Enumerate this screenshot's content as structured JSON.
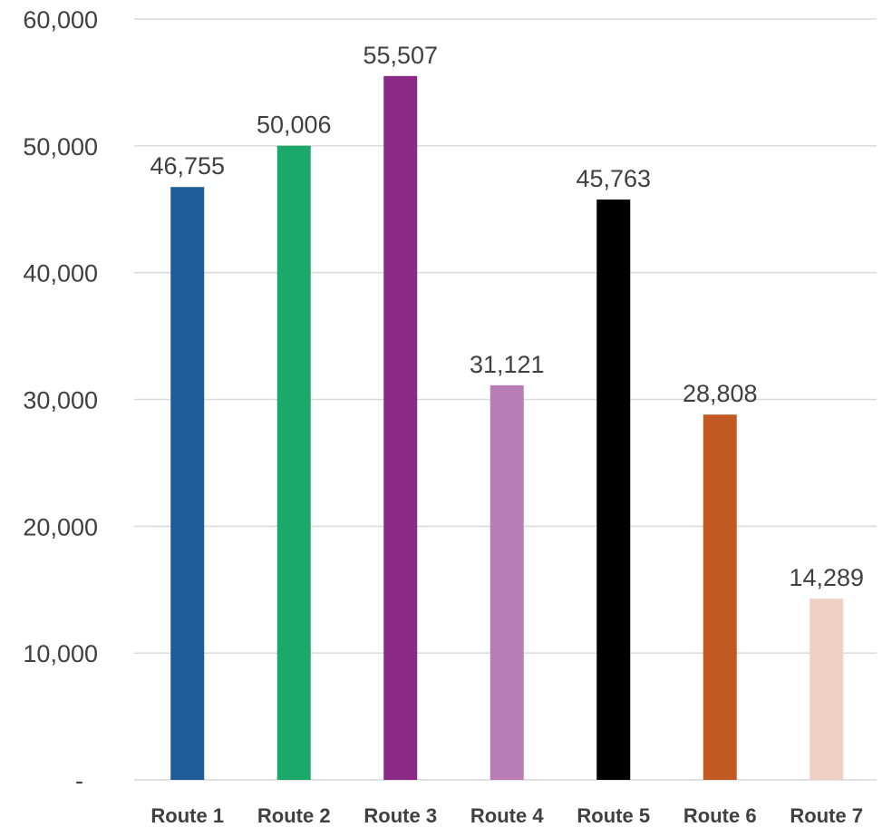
{
  "chart_data": {
    "type": "bar",
    "title": "",
    "xlabel": "",
    "ylabel": "",
    "categories": [
      "Route 1",
      "Route 2",
      "Route 3",
      "Route 4",
      "Route 5",
      "Route 6",
      "Route 7"
    ],
    "values": [
      46755,
      50006,
      55507,
      31121,
      45763,
      28808,
      14289
    ],
    "data_labels": [
      "46,755",
      "50,006",
      "55,507",
      "31,121",
      "45,763",
      "28,808",
      "14,289"
    ],
    "colors": [
      "#1f5c99",
      "#1da86b",
      "#8b2a86",
      "#b97db6",
      "#000000",
      "#c05a22",
      "#efd0c2"
    ],
    "ylim": [
      0,
      60000
    ],
    "yticks": [
      0,
      10000,
      20000,
      30000,
      40000,
      50000,
      60000
    ],
    "ytick_labels": [
      "-",
      "10,000",
      "20,000",
      "30,000",
      "40,000",
      "50,000",
      "60,000"
    ],
    "grid": true,
    "legend": "none"
  }
}
